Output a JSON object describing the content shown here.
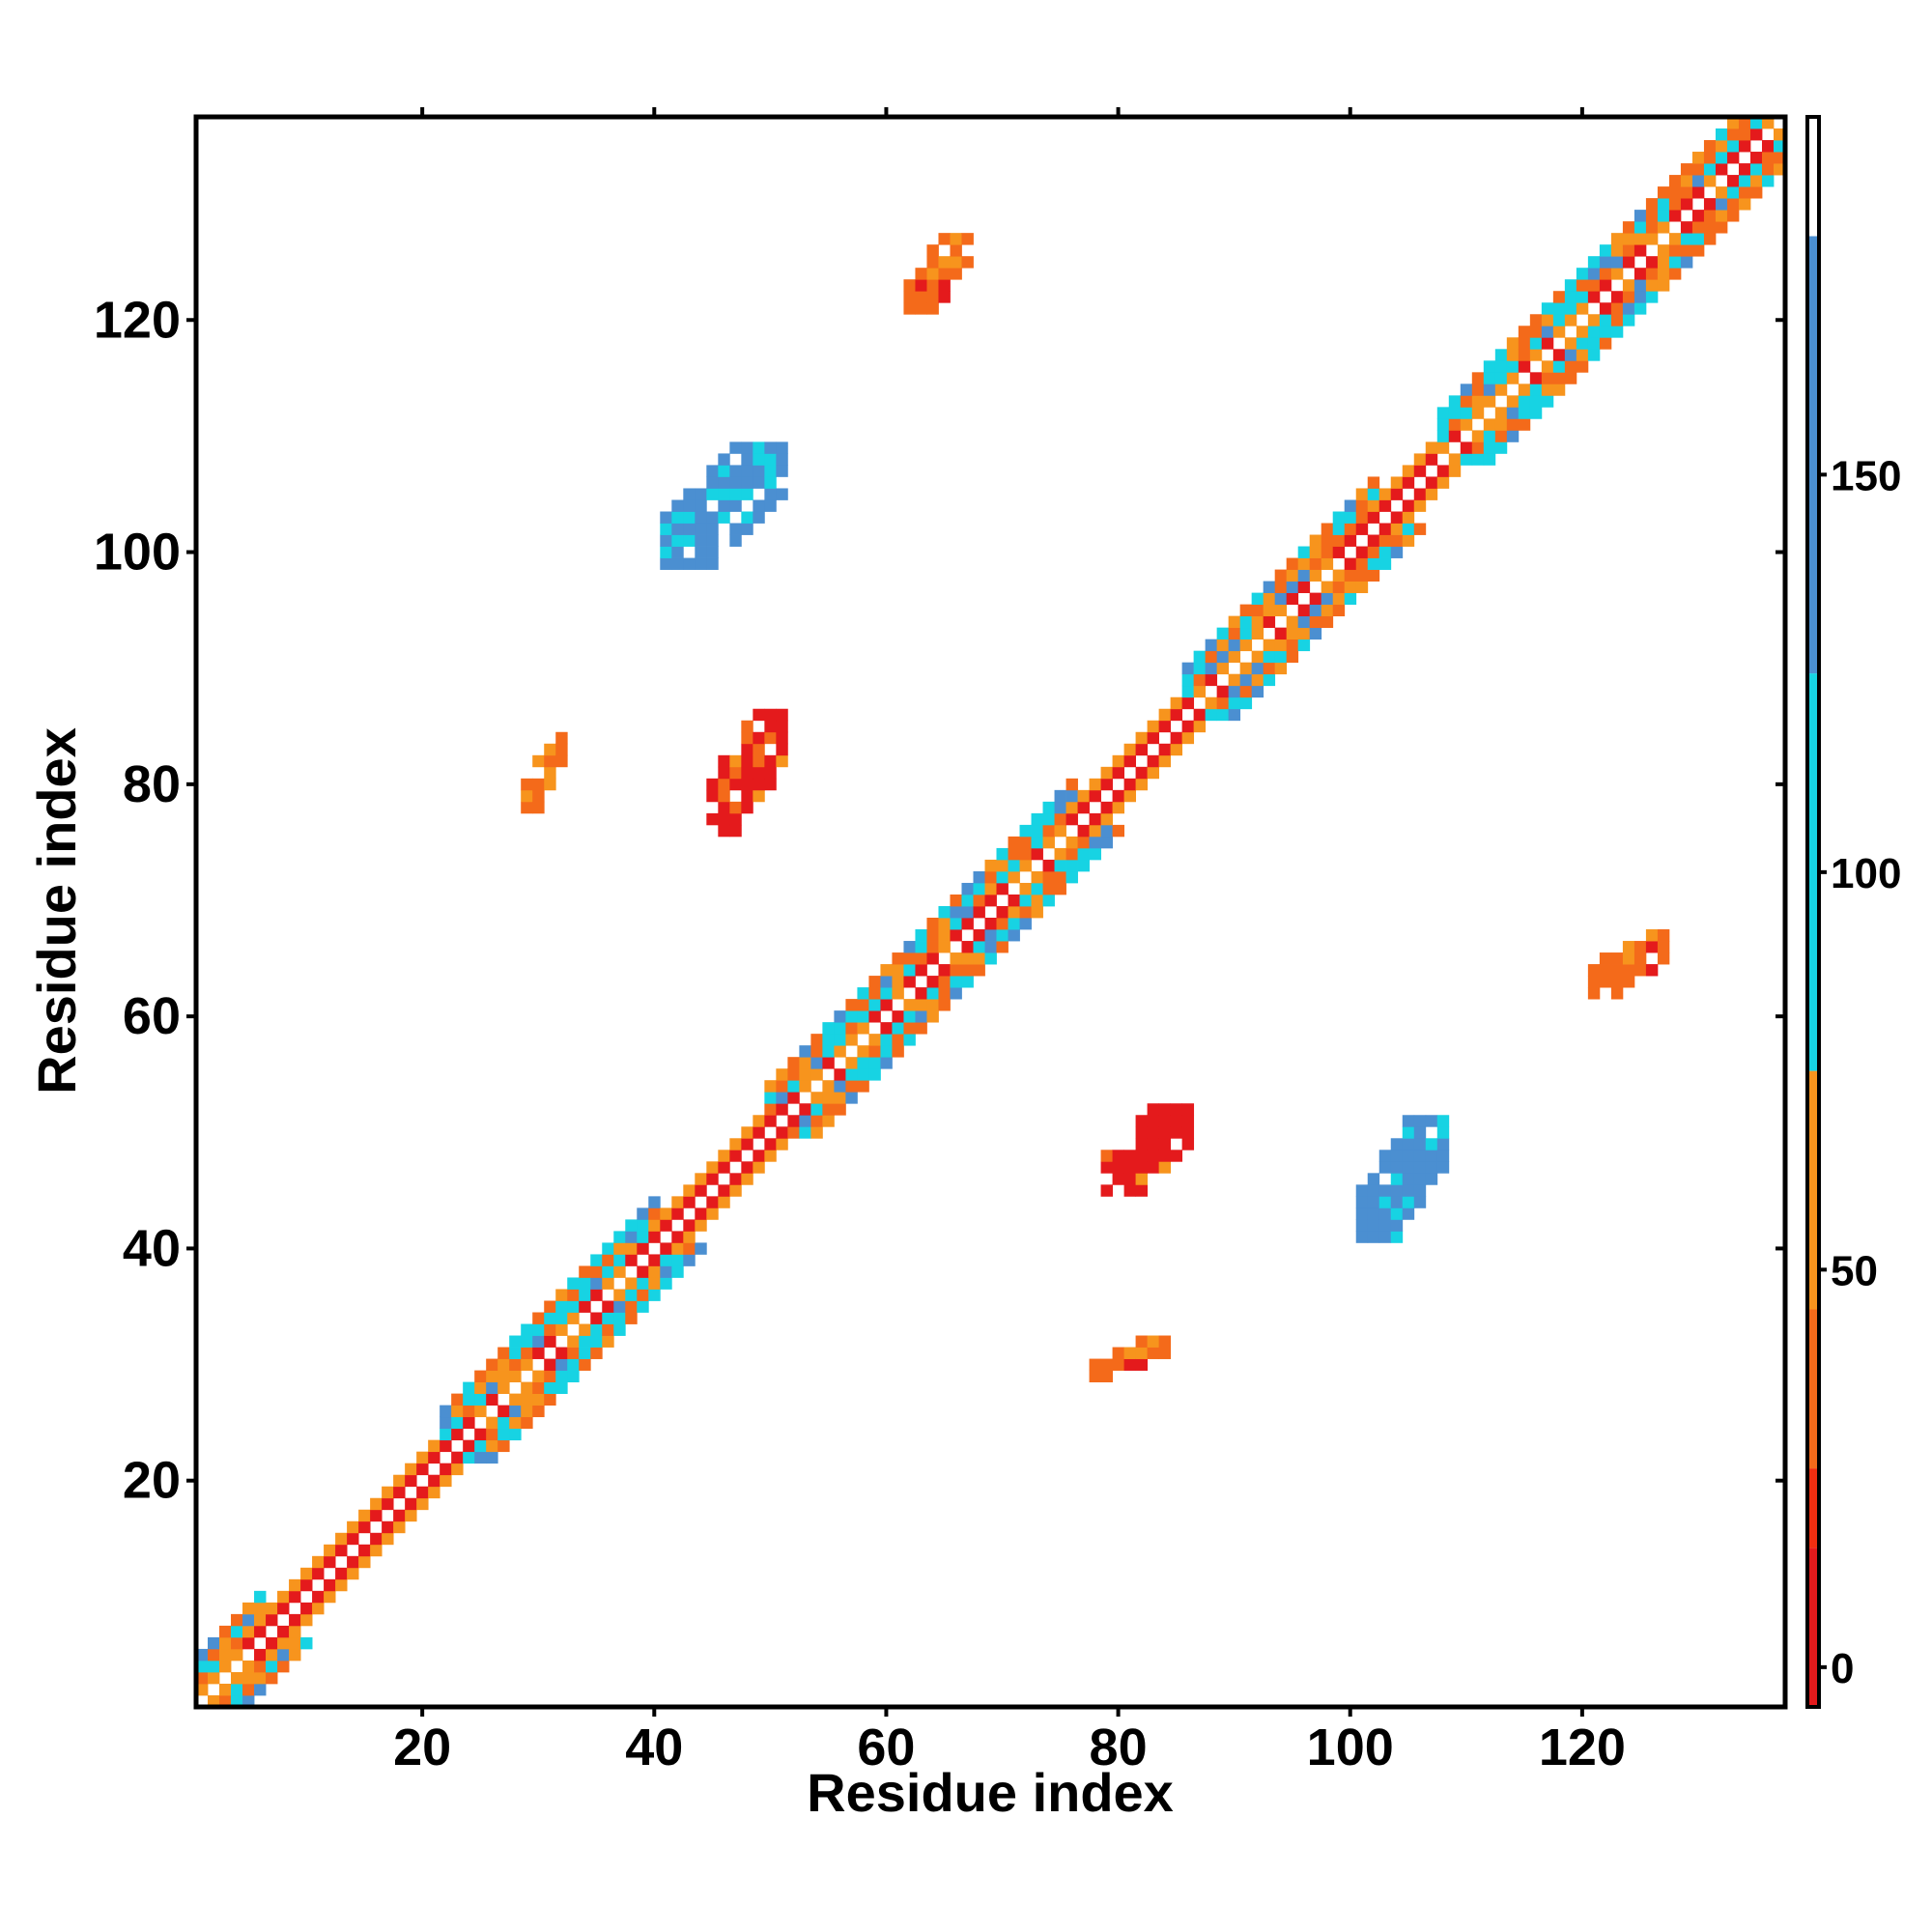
{
  "chart_data": {
    "type": "heatmap",
    "title": "",
    "xlabel": "Residue index",
    "ylabel": "Residue index",
    "xlim": [
      1,
      137
    ],
    "ylim": [
      1,
      137
    ],
    "xticks": [
      20,
      40,
      60,
      80,
      100,
      120
    ],
    "yticks": [
      20,
      40,
      60,
      80,
      100,
      120
    ],
    "grid": false,
    "colorbar": {
      "min": -5,
      "max": 195,
      "ticks": [
        0,
        50,
        100,
        150
      ],
      "bands": [
        {
          "from": -5,
          "to": 15,
          "color": "#e41a1c"
        },
        {
          "from": 15,
          "to": 25,
          "color": "#f02e10"
        },
        {
          "from": 25,
          "to": 45,
          "color": "#f46a1a"
        },
        {
          "from": 45,
          "to": 75,
          "color": "#f7941d"
        },
        {
          "from": 75,
          "to": 125,
          "color": "#17d3e3"
        },
        {
          "from": 125,
          "to": 180,
          "color": "#4b8fd1"
        },
        {
          "from": 180,
          "to": 195,
          "color": "#ffffff"
        }
      ]
    },
    "diagonal_bands": [
      {
        "from": 1,
        "to": 6,
        "pattern": "mixed"
      },
      {
        "from": 6,
        "to": 22,
        "pattern": "red"
      },
      {
        "from": 22,
        "to": 31,
        "pattern": "mixed"
      },
      {
        "from": 31,
        "to": 40,
        "pattern": "mixed"
      },
      {
        "from": 40,
        "to": 50,
        "pattern": "red"
      },
      {
        "from": 50,
        "to": 76,
        "pattern": "mixed"
      },
      {
        "from": 76,
        "to": 86,
        "pattern": "red"
      },
      {
        "from": 86,
        "to": 102,
        "pattern": "mixed"
      },
      {
        "from": 102,
        "to": 108,
        "pattern": "red"
      },
      {
        "from": 108,
        "to": 118,
        "pattern": "mixed"
      },
      {
        "from": 118,
        "to": 137,
        "pattern": "mixed"
      }
    ],
    "blobs": [
      {
        "x": [
          45,
          51
        ],
        "y": [
          76,
          86
        ],
        "value": 40
      },
      {
        "x": [
          29,
          32
        ],
        "y": [
          78,
          84
        ],
        "value": 55
      },
      {
        "x": [
          41,
          51
        ],
        "y": [
          99,
          109
        ],
        "value": 140
      },
      {
        "x": [
          78,
          84
        ],
        "y": [
          29,
          32
        ],
        "value": 55
      },
      {
        "x": [
          101,
          108
        ],
        "y": [
          41,
          51
        ],
        "value": 140
      },
      {
        "x": [
          62,
          67
        ],
        "y": [
          121,
          127
        ],
        "value": 60
      },
      {
        "x": [
          121,
          127
        ],
        "y": [
          62,
          67
        ],
        "value": 60
      },
      {
        "x": [
          79,
          86
        ],
        "y": [
          45,
          52
        ],
        "value": 40
      }
    ]
  }
}
